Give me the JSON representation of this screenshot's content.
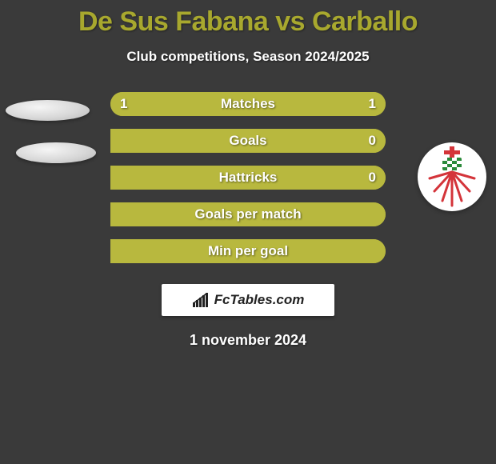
{
  "title": "De Sus Fabana vs Carballo",
  "subtitle": "Club competitions, Season 2024/2025",
  "logo_text": "FcTables.com",
  "date_text": "1 november 2024",
  "colors": {
    "background": "#3a3a3a",
    "title": "#a8a82e",
    "bar_base": "#a8a82e",
    "bar_fill": "#b8b83e",
    "text": "#ffffff"
  },
  "rows": [
    {
      "label": "Matches",
      "left": "1",
      "right": "1",
      "left_pct": 50,
      "right_pct": 50
    },
    {
      "label": "Goals",
      "left": "",
      "right": "0",
      "left_pct": 0,
      "right_pct": 100
    },
    {
      "label": "Hattricks",
      "left": "",
      "right": "0",
      "left_pct": 0,
      "right_pct": 100
    },
    {
      "label": "Goals per match",
      "left": "",
      "right": "",
      "left_pct": 0,
      "right_pct": 100
    },
    {
      "label": "Min per goal",
      "left": "",
      "right": "",
      "left_pct": 0,
      "right_pct": 100
    }
  ],
  "badge": {
    "stripes": "#d4343a",
    "cross": "#d4343a",
    "check_bg": "#2a8a3a"
  }
}
